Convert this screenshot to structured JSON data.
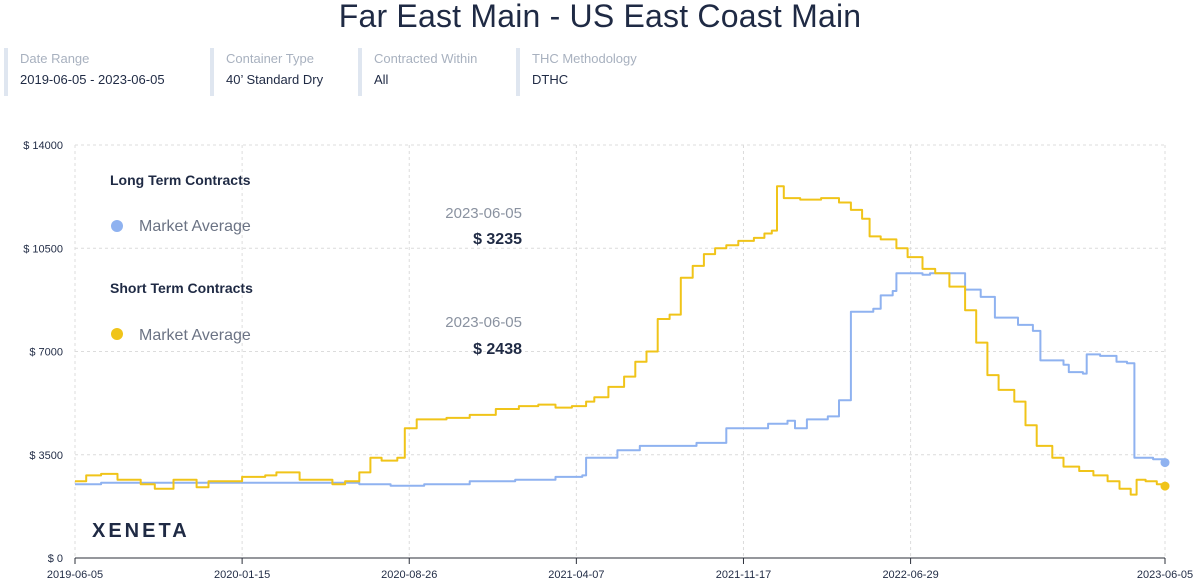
{
  "title": "Far East Main - US East Coast Main",
  "filters": [
    {
      "label": "Date Range",
      "value": "2019-06-05 - 2023-06-05"
    },
    {
      "label": "Container Type",
      "value": "40’ Standard Dry"
    },
    {
      "label": "Contracted Within",
      "value": "All"
    },
    {
      "label": "THC Methodology",
      "value": "DTHC"
    }
  ],
  "legend": {
    "long_title": "Long Term Contracts",
    "long_item": "Market Average",
    "long_date": "2023-06-05",
    "long_value": "$ 3235",
    "short_title": "Short Term Contracts",
    "short_item": "Market Average",
    "short_date": "2023-06-05",
    "short_value": "$ 2438"
  },
  "logo": "XENETA",
  "colors": {
    "long": "#8fb2f0",
    "short": "#f0c419",
    "grid": "#dcdcdc"
  },
  "chart_data": {
    "type": "line",
    "x_ticks": [
      "2019-06-05",
      "2020-01-15",
      "2020-08-26",
      "2021-04-07",
      "2021-11-17",
      "2022-06-29",
      "2023-06-05"
    ],
    "y_ticks": [
      "$ 0",
      "$ 3500",
      "$ 7000",
      "$ 10500",
      "$ 14000"
    ],
    "ylim": [
      0,
      14000
    ],
    "grid": true,
    "series": [
      {
        "name": "Long Term Contracts - Market Average",
        "color": "#8fb2f0",
        "points": [
          [
            "2019-06-05",
            2500
          ],
          [
            "2019-07-10",
            2550
          ],
          [
            "2019-10-10",
            2550
          ],
          [
            "2020-01-15",
            2550
          ],
          [
            "2020-06-20",
            2500
          ],
          [
            "2020-08-01",
            2450
          ],
          [
            "2020-09-15",
            2500
          ],
          [
            "2020-11-15",
            2600
          ],
          [
            "2021-01-15",
            2650
          ],
          [
            "2021-03-10",
            2750
          ],
          [
            "2021-04-15",
            2800
          ],
          [
            "2021-04-20",
            3400
          ],
          [
            "2021-06-01",
            3650
          ],
          [
            "2021-07-01",
            3800
          ],
          [
            "2021-09-15",
            3900
          ],
          [
            "2021-10-25",
            4400
          ],
          [
            "2021-12-20",
            4550
          ],
          [
            "2022-01-15",
            4650
          ],
          [
            "2022-01-25",
            4400
          ],
          [
            "2022-02-10",
            4700
          ],
          [
            "2022-03-10",
            4800
          ],
          [
            "2022-03-25",
            5350
          ],
          [
            "2022-04-10",
            8350
          ],
          [
            "2022-05-10",
            8450
          ],
          [
            "2022-05-20",
            8900
          ],
          [
            "2022-06-05",
            9050
          ],
          [
            "2022-06-10",
            9650
          ],
          [
            "2022-07-15",
            9600
          ],
          [
            "2022-07-25",
            9650
          ],
          [
            "2022-09-01",
            9650
          ],
          [
            "2022-09-10",
            9100
          ],
          [
            "2022-10-01",
            8850
          ],
          [
            "2022-10-20",
            8150
          ],
          [
            "2022-11-20",
            7900
          ],
          [
            "2022-12-10",
            7700
          ],
          [
            "2022-12-20",
            6700
          ],
          [
            "2023-01-20",
            6550
          ],
          [
            "2023-01-27",
            6300
          ],
          [
            "2023-02-15",
            6250
          ],
          [
            "2023-02-20",
            6900
          ],
          [
            "2023-03-10",
            6850
          ],
          [
            "2023-04-01",
            6650
          ],
          [
            "2023-04-15",
            6600
          ],
          [
            "2023-04-25",
            3400
          ],
          [
            "2023-05-20",
            3350
          ],
          [
            "2023-06-05",
            3235
          ]
        ]
      },
      {
        "name": "Short Term Contracts - Market Average",
        "color": "#f0c419",
        "points": [
          [
            "2019-06-05",
            2600
          ],
          [
            "2019-06-20",
            2800
          ],
          [
            "2019-07-10",
            2850
          ],
          [
            "2019-08-01",
            2650
          ],
          [
            "2019-09-01",
            2500
          ],
          [
            "2019-09-20",
            2350
          ],
          [
            "2019-10-15",
            2650
          ],
          [
            "2019-11-15",
            2400
          ],
          [
            "2019-12-01",
            2600
          ],
          [
            "2020-01-15",
            2750
          ],
          [
            "2020-02-15",
            2800
          ],
          [
            "2020-03-01",
            2900
          ],
          [
            "2020-04-01",
            2650
          ],
          [
            "2020-05-15",
            2500
          ],
          [
            "2020-06-01",
            2600
          ],
          [
            "2020-06-20",
            2900
          ],
          [
            "2020-07-05",
            3400
          ],
          [
            "2020-07-20",
            3300
          ],
          [
            "2020-08-10",
            3400
          ],
          [
            "2020-08-20",
            4400
          ],
          [
            "2020-09-05",
            4700
          ],
          [
            "2020-10-15",
            4750
          ],
          [
            "2020-11-15",
            4850
          ],
          [
            "2020-12-20",
            5050
          ],
          [
            "2021-01-20",
            5150
          ],
          [
            "2021-02-15",
            5200
          ],
          [
            "2021-03-10",
            5100
          ],
          [
            "2021-04-01",
            5150
          ],
          [
            "2021-04-20",
            5300
          ],
          [
            "2021-05-01",
            5450
          ],
          [
            "2021-05-20",
            5800
          ],
          [
            "2021-06-10",
            6150
          ],
          [
            "2021-06-25",
            6650
          ],
          [
            "2021-07-10",
            7000
          ],
          [
            "2021-07-25",
            8100
          ],
          [
            "2021-08-10",
            8250
          ],
          [
            "2021-08-25",
            9500
          ],
          [
            "2021-09-10",
            9900
          ],
          [
            "2021-09-25",
            10300
          ],
          [
            "2021-10-10",
            10500
          ],
          [
            "2021-10-25",
            10600
          ],
          [
            "2021-11-10",
            10750
          ],
          [
            "2021-12-01",
            10850
          ],
          [
            "2021-12-15",
            11000
          ],
          [
            "2021-12-25",
            11100
          ],
          [
            "2022-01-01",
            12600
          ],
          [
            "2022-01-10",
            12200
          ],
          [
            "2022-02-01",
            12150
          ],
          [
            "2022-03-01",
            12200
          ],
          [
            "2022-03-25",
            12050
          ],
          [
            "2022-04-10",
            11800
          ],
          [
            "2022-04-25",
            11500
          ],
          [
            "2022-05-05",
            10900
          ],
          [
            "2022-05-20",
            10800
          ],
          [
            "2022-06-10",
            10500
          ],
          [
            "2022-06-25",
            10200
          ],
          [
            "2022-07-15",
            9800
          ],
          [
            "2022-08-01",
            9650
          ],
          [
            "2022-08-20",
            9200
          ],
          [
            "2022-09-10",
            8400
          ],
          [
            "2022-09-25",
            7300
          ],
          [
            "2022-10-10",
            6200
          ],
          [
            "2022-10-25",
            5700
          ],
          [
            "2022-11-15",
            5300
          ],
          [
            "2022-11-30",
            4500
          ],
          [
            "2022-12-15",
            3800
          ],
          [
            "2023-01-05",
            3400
          ],
          [
            "2023-01-20",
            3100
          ],
          [
            "2023-02-10",
            2950
          ],
          [
            "2023-03-01",
            2800
          ],
          [
            "2023-03-20",
            2600
          ],
          [
            "2023-04-05",
            2350
          ],
          [
            "2023-04-20",
            2150
          ],
          [
            "2023-04-28",
            2650
          ],
          [
            "2023-05-10",
            2600
          ],
          [
            "2023-05-25",
            2500
          ],
          [
            "2023-06-05",
            2438
          ]
        ]
      }
    ]
  }
}
